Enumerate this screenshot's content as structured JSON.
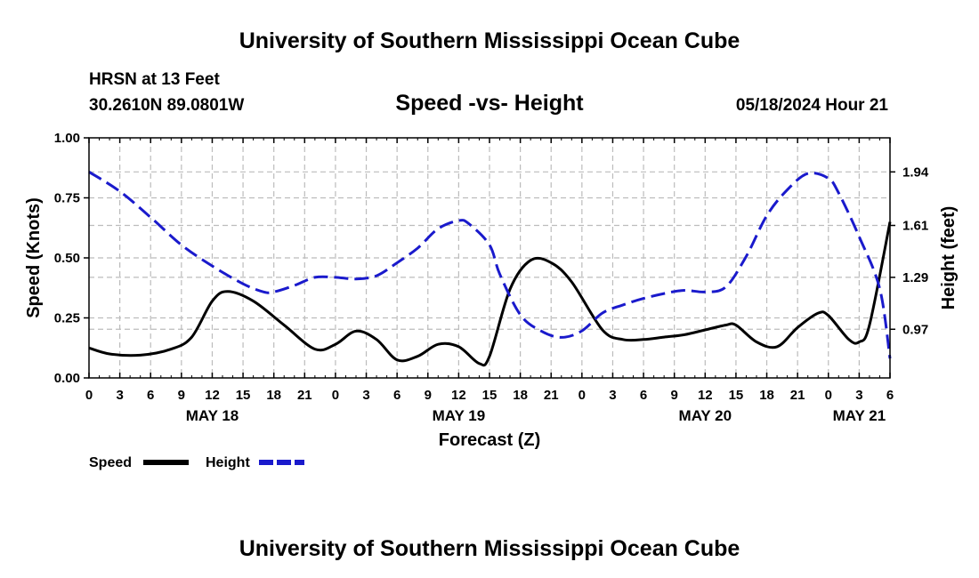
{
  "page": {
    "title_top": "University of Southern Mississippi Ocean Cube",
    "title_bottom": "University of Southern Mississippi Ocean Cube"
  },
  "chart_data": {
    "type": "line",
    "title": "Speed -vs- Height",
    "station": "HRSN at 13 Feet",
    "location": "30.2610N  89.0801W",
    "issued": "05/18/2024 Hour 21",
    "xlabel": "Forecast (Z)",
    "ylabel_left": "Speed (Knots)",
    "ylabel_right": "Height (feet)",
    "ylim_left": [
      0,
      1
    ],
    "ylim_right": [
      0.67,
      2.15
    ],
    "yticks_left": [
      "0.00",
      "0.25",
      "0.50",
      "0.75",
      "1.00"
    ],
    "yticks_right": [
      "0.97",
      "1.29",
      "1.61",
      "1.94"
    ],
    "x_hours_range": [
      0,
      78
    ],
    "x_tick_labels": [
      "0",
      "3",
      "6",
      "9",
      "12",
      "15",
      "18",
      "21",
      "0",
      "3",
      "6",
      "9",
      "12",
      "15",
      "18",
      "21",
      "0",
      "3",
      "6",
      "9",
      "12",
      "15",
      "18",
      "21",
      "0",
      "3",
      "6"
    ],
    "date_labels": [
      {
        "label": "MAY 18",
        "hour": 12
      },
      {
        "label": "MAY 19",
        "hour": 36
      },
      {
        "label": "MAY 20",
        "hour": 60
      },
      {
        "label": "MAY 21",
        "hour": 75
      }
    ],
    "grid": true,
    "legend": [
      {
        "name": "Speed",
        "color": "#000000",
        "dash": "solid"
      },
      {
        "name": "Height",
        "color": "#1a1acc",
        "dash": "dashed"
      }
    ],
    "series": [
      {
        "name": "Speed",
        "axis": "left",
        "color": "#000000",
        "x": [
          0,
          2,
          5,
          8,
          10,
          12,
          13.5,
          16,
          19,
          22,
          24,
          26,
          28,
          30,
          32,
          34,
          36,
          38,
          39,
          41,
          43,
          45,
          47,
          50,
          52,
          54,
          56,
          58,
          60,
          62,
          63,
          65,
          67,
          69,
          71,
          72,
          74,
          75,
          76,
          78
        ],
        "values": [
          0.125,
          0.1,
          0.095,
          0.12,
          0.17,
          0.32,
          0.36,
          0.32,
          0.22,
          0.12,
          0.14,
          0.195,
          0.16,
          0.075,
          0.09,
          0.14,
          0.13,
          0.06,
          0.09,
          0.37,
          0.49,
          0.48,
          0.4,
          0.2,
          0.16,
          0.16,
          0.17,
          0.18,
          0.2,
          0.22,
          0.22,
          0.15,
          0.13,
          0.21,
          0.27,
          0.26,
          0.16,
          0.15,
          0.22,
          0.65
        ]
      },
      {
        "name": "Height",
        "axis": "right",
        "color": "#1a1acc",
        "x": [
          0,
          3,
          6,
          9,
          12,
          15,
          17,
          18,
          20,
          22,
          24,
          26,
          28,
          30,
          32,
          34,
          36,
          37,
          39,
          40,
          42,
          44,
          46,
          48,
          50,
          52,
          54,
          56,
          58,
          60,
          62,
          64,
          66,
          68,
          70,
          72,
          73,
          75,
          77,
          78
        ],
        "values": [
          1.94,
          1.82,
          1.66,
          1.49,
          1.36,
          1.25,
          1.2,
          1.2,
          1.24,
          1.29,
          1.29,
          1.28,
          1.3,
          1.38,
          1.47,
          1.59,
          1.64,
          1.62,
          1.49,
          1.31,
          1.06,
          0.96,
          0.92,
          0.96,
          1.07,
          1.12,
          1.16,
          1.19,
          1.21,
          1.2,
          1.23,
          1.42,
          1.67,
          1.83,
          1.93,
          1.9,
          1.81,
          1.54,
          1.22,
          0.79
        ]
      }
    ]
  }
}
